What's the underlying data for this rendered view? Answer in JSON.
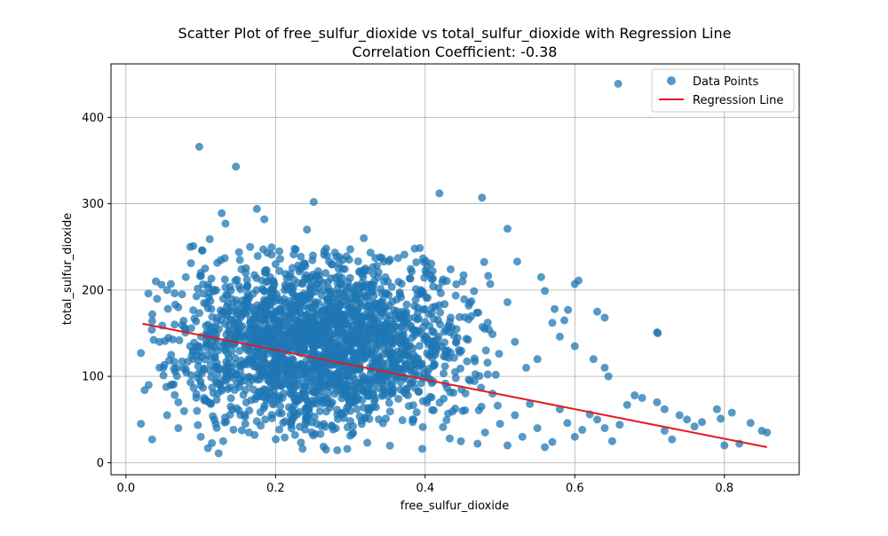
{
  "chart_data": {
    "type": "scatter",
    "title": "Scatter Plot of free_sulfur_dioxide vs total_sulfur_dioxide with Regression Line",
    "subtitle": "Correlation Coefficient: -0.38",
    "xlabel": "free_sulfur_dioxide",
    "ylabel": "total_sulfur_dioxide",
    "xlim": [
      -0.02,
      0.9
    ],
    "ylim": [
      -14,
      462
    ],
    "xticks": [
      0.0,
      0.2,
      0.4,
      0.6,
      0.8
    ],
    "xtick_labels": [
      "0.0",
      "0.2",
      "0.4",
      "0.6",
      "0.8"
    ],
    "yticks": [
      0,
      100,
      200,
      300,
      400
    ],
    "ytick_labels": [
      "0",
      "100",
      "200",
      "300",
      "400"
    ],
    "grid": true,
    "legend_position": "top-right",
    "series": [
      {
        "name": "Data Points",
        "kind": "scatter",
        "color": "#1f77b4",
        "points": [
          [
            0.098,
            366
          ],
          [
            0.147,
            343
          ],
          [
            0.658,
            439
          ],
          [
            0.419,
            312
          ],
          [
            0.476,
            307
          ],
          [
            0.251,
            302
          ],
          [
            0.175,
            294
          ],
          [
            0.128,
            289
          ],
          [
            0.185,
            282
          ],
          [
            0.133,
            277
          ],
          [
            0.51,
            271
          ],
          [
            0.242,
            270
          ],
          [
            0.318,
            260
          ],
          [
            0.112,
            259
          ],
          [
            0.086,
            250
          ],
          [
            0.09,
            251
          ],
          [
            0.386,
            248
          ],
          [
            0.523,
            233
          ],
          [
            0.166,
            250
          ],
          [
            0.205,
            245
          ],
          [
            0.227,
            247
          ],
          [
            0.265,
            245
          ],
          [
            0.295,
            239
          ],
          [
            0.34,
            238
          ],
          [
            0.41,
            222
          ],
          [
            0.45,
            210
          ],
          [
            0.555,
            215
          ],
          [
            0.6,
            207
          ],
          [
            0.605,
            211
          ],
          [
            0.487,
            207
          ],
          [
            0.56,
            199
          ],
          [
            0.51,
            186
          ],
          [
            0.573,
            178
          ],
          [
            0.591,
            177
          ],
          [
            0.63,
            175
          ],
          [
            0.64,
            168
          ],
          [
            0.57,
            162
          ],
          [
            0.586,
            165
          ],
          [
            0.71,
            151
          ],
          [
            0.711,
            150
          ],
          [
            0.58,
            146
          ],
          [
            0.6,
            135
          ],
          [
            0.625,
            120
          ],
          [
            0.64,
            110
          ],
          [
            0.645,
            100
          ],
          [
            0.55,
            120
          ],
          [
            0.52,
            140
          ],
          [
            0.535,
            110
          ],
          [
            0.04,
            210
          ],
          [
            0.02,
            127
          ],
          [
            0.025,
            84
          ],
          [
            0.02,
            45
          ],
          [
            0.035,
            27
          ],
          [
            0.03,
            196
          ],
          [
            0.055,
            200
          ],
          [
            0.06,
            207
          ],
          [
            0.075,
            195
          ],
          [
            0.07,
            180
          ],
          [
            0.08,
            215
          ],
          [
            0.1,
            220
          ],
          [
            0.065,
            160
          ],
          [
            0.045,
            140
          ],
          [
            0.05,
            110
          ],
          [
            0.06,
            90
          ],
          [
            0.07,
            70
          ],
          [
            0.055,
            55
          ],
          [
            0.07,
            40
          ],
          [
            0.09,
            120
          ],
          [
            0.095,
            60
          ],
          [
            0.1,
            30
          ],
          [
            0.12,
            45
          ],
          [
            0.13,
            25
          ],
          [
            0.76,
            42
          ],
          [
            0.8,
            20
          ],
          [
            0.81,
            58
          ],
          [
            0.835,
            46
          ],
          [
            0.85,
            37
          ],
          [
            0.857,
            35
          ],
          [
            0.79,
            62
          ],
          [
            0.795,
            51
          ],
          [
            0.82,
            22
          ],
          [
            0.77,
            47
          ],
          [
            0.75,
            50
          ],
          [
            0.74,
            55
          ],
          [
            0.73,
            27
          ],
          [
            0.72,
            37
          ],
          [
            0.71,
            70
          ],
          [
            0.72,
            62
          ],
          [
            0.68,
            78
          ],
          [
            0.69,
            75
          ],
          [
            0.67,
            67
          ],
          [
            0.66,
            44
          ],
          [
            0.65,
            25
          ],
          [
            0.64,
            40
          ],
          [
            0.63,
            50
          ],
          [
            0.62,
            56
          ],
          [
            0.61,
            38
          ],
          [
            0.6,
            30
          ],
          [
            0.59,
            46
          ],
          [
            0.58,
            62
          ],
          [
            0.57,
            24
          ],
          [
            0.56,
            18
          ],
          [
            0.55,
            40
          ],
          [
            0.54,
            68
          ],
          [
            0.53,
            30
          ],
          [
            0.52,
            55
          ],
          [
            0.51,
            20
          ],
          [
            0.5,
            45
          ],
          [
            0.49,
            80
          ],
          [
            0.48,
            35
          ],
          [
            0.47,
            22
          ],
          [
            0.46,
            95
          ],
          [
            0.45,
            60
          ],
          [
            0.44,
            105
          ],
          [
            0.43,
            130
          ],
          [
            0.42,
            160
          ],
          [
            0.41,
            180
          ],
          [
            0.4,
            145
          ],
          [
            0.39,
            195
          ],
          [
            0.38,
            120
          ],
          [
            0.37,
            175
          ],
          [
            0.36,
            100
          ],
          [
            0.35,
            210
          ],
          [
            0.34,
            150
          ],
          [
            0.33,
            85
          ],
          [
            0.32,
            225
          ],
          [
            0.31,
            170
          ],
          [
            0.3,
            60
          ],
          [
            0.29,
            235
          ],
          [
            0.28,
            130
          ],
          [
            0.27,
            190
          ],
          [
            0.26,
            110
          ],
          [
            0.25,
            240
          ],
          [
            0.24,
            75
          ],
          [
            0.23,
            160
          ],
          [
            0.22,
            205
          ],
          [
            0.21,
            140
          ],
          [
            0.2,
            230
          ],
          [
            0.19,
            95
          ],
          [
            0.18,
            180
          ],
          [
            0.17,
            125
          ],
          [
            0.16,
            220
          ],
          [
            0.15,
            150
          ],
          [
            0.14,
            65
          ],
          [
            0.13,
            190
          ],
          [
            0.12,
            110
          ],
          [
            0.11,
            160
          ],
          [
            0.1,
            90
          ]
        ]
      },
      {
        "name": "Regression Line",
        "kind": "line",
        "color": "#e31a1c",
        "x": [
          0.022,
          0.857
        ],
        "y": [
          161,
          18
        ]
      }
    ],
    "cluster": {
      "note": "dense body of overlapping points between x 0.03 and 0.5, y 10 to 250",
      "x_range": [
        0.03,
        0.5
      ],
      "y_range": [
        10,
        250
      ],
      "count": 2200
    }
  }
}
